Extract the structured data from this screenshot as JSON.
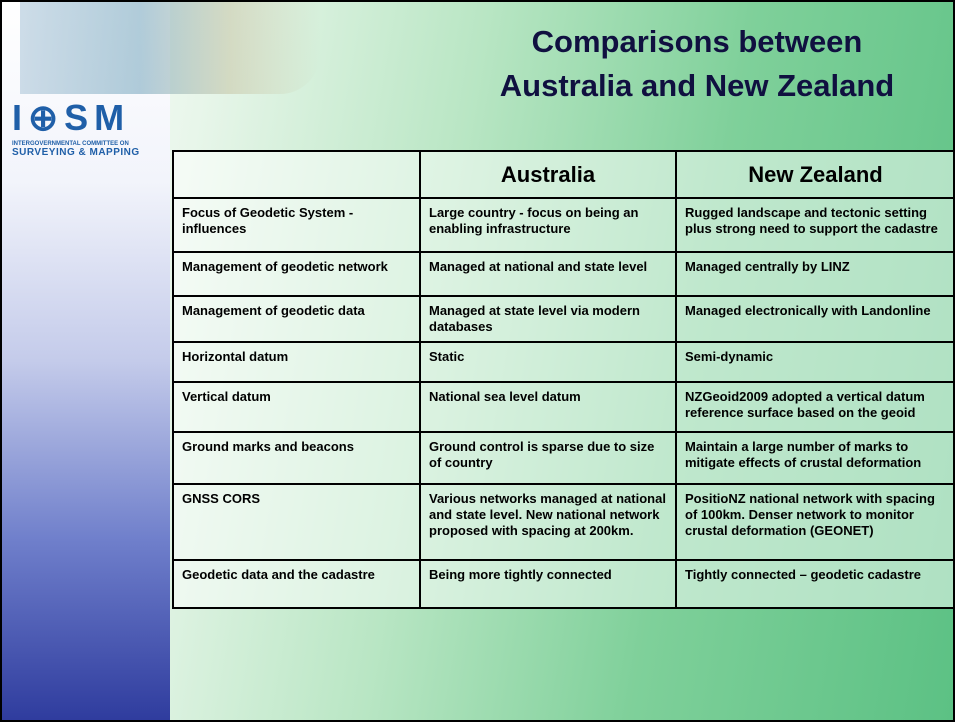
{
  "logo": {
    "mark": "I⊕SM",
    "line1": "INTERGOVERNMENTAL COMMITTEE ON",
    "line2": "SURVEYING & MAPPING"
  },
  "header": {
    "title": [
      "Comparisons between",
      "Australia and New Zealand"
    ]
  },
  "table": {
    "columns": [
      "",
      "Australia",
      "New Zealand"
    ],
    "rows": [
      [
        "Focus of Geodetic System - influences",
        "Large country - focus on being an enabling infrastructure",
        "Rugged landscape and tectonic setting plus strong need to support the cadastre"
      ],
      [
        "Management of geodetic network",
        "Managed at national and state level",
        "Managed centrally by LINZ"
      ],
      [
        "Management of geodetic data",
        "Managed at state level via modern databases",
        "Managed electronically with Landonline"
      ],
      [
        "Horizontal datum",
        "Static",
        "Semi-dynamic"
      ],
      [
        "Vertical datum",
        "National sea level datum",
        "NZGeoid2009 adopted a vertical datum reference surface based on the geoid"
      ],
      [
        "Ground marks and beacons",
        "Ground control is sparse due to size of country",
        "Maintain a large number of marks to mitigate effects of crustal deformation"
      ],
      [
        "GNSS CORS",
        "Various networks managed at national and state level.  New national network proposed with spacing at 200km.",
        "PositioNZ national network with spacing of 100km.  Denser network to monitor crustal deformation (GEONET)"
      ],
      [
        "Geodetic data and the cadastre",
        "Being more tightly connected",
        "Tightly connected – geodetic cadastre"
      ]
    ]
  }
}
